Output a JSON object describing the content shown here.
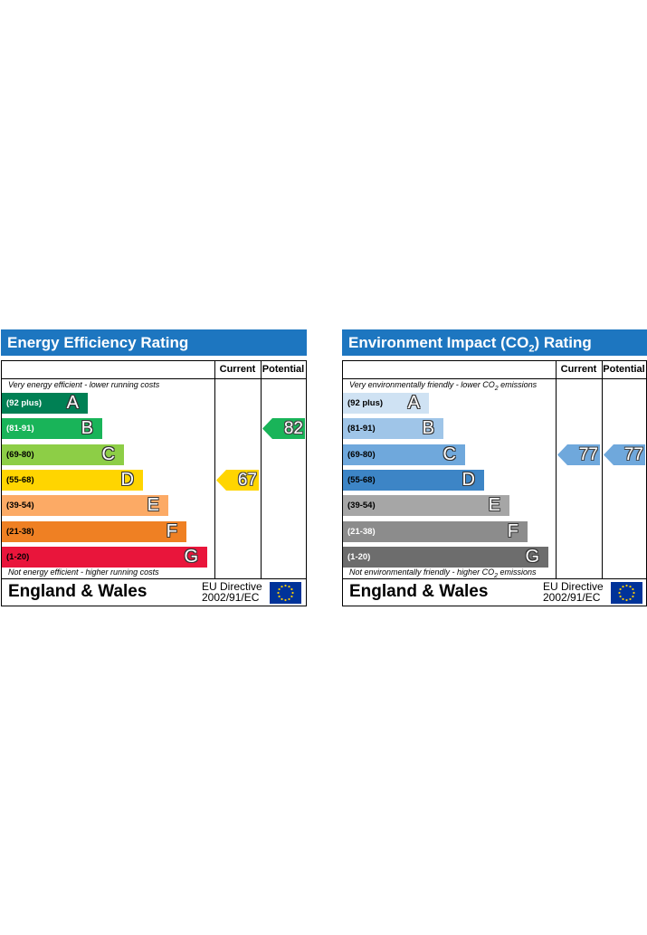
{
  "chart_data": [
    {
      "type": "bar",
      "title": "Energy Efficiency Rating",
      "columns": [
        "Current",
        "Potential"
      ],
      "top_note": "Very energy efficient - lower running costs",
      "bottom_note": "Not energy efficient - higher running costs",
      "bands": [
        {
          "range": "(92 plus)",
          "letter": "A",
          "color": "#008054",
          "text_color": "#ffffff"
        },
        {
          "range": "(81-91)",
          "letter": "B",
          "color": "#19b459",
          "text_color": "#ffffff"
        },
        {
          "range": "(69-80)",
          "letter": "C",
          "color": "#8dce46",
          "text_color": "#000000"
        },
        {
          "range": "(55-68)",
          "letter": "D",
          "color": "#ffd500",
          "text_color": "#000000"
        },
        {
          "range": "(39-54)",
          "letter": "E",
          "color": "#fcaa65",
          "text_color": "#000000"
        },
        {
          "range": "(21-38)",
          "letter": "F",
          "color": "#ef8023",
          "text_color": "#000000"
        },
        {
          "range": "(1-20)",
          "letter": "G",
          "color": "#e9153b",
          "text_color": "#000000"
        }
      ],
      "current": {
        "value": 67,
        "band": "D",
        "color": "#ffd500"
      },
      "potential": {
        "value": 82,
        "band": "B",
        "color": "#19b459"
      },
      "footer_region": "England & Wales",
      "footer_directive_line1": "EU Directive",
      "footer_directive_line2": "2002/91/EC"
    },
    {
      "type": "bar",
      "title_prefix": "Environment Impact (CO",
      "title_sub": "2",
      "title_suffix": ") Rating",
      "columns": [
        "Current",
        "Potential"
      ],
      "top_note_prefix": "Very environmentally friendly - lower CO",
      "top_note_sub": "2",
      "top_note_suffix": " emissions",
      "bottom_note_prefix": "Not environmentally friendly - higher CO",
      "bottom_note_sub": "2",
      "bottom_note_suffix": " emissions",
      "bands": [
        {
          "range": "(92 plus)",
          "letter": "A",
          "color": "#cfe2f3",
          "text_color": "#000000"
        },
        {
          "range": "(81-91)",
          "letter": "B",
          "color": "#9fc5e8",
          "text_color": "#000000"
        },
        {
          "range": "(69-80)",
          "letter": "C",
          "color": "#6fa8dc",
          "text_color": "#000000"
        },
        {
          "range": "(55-68)",
          "letter": "D",
          "color": "#3d85c6",
          "text_color": "#000000"
        },
        {
          "range": "(39-54)",
          "letter": "E",
          "color": "#a6a6a6",
          "text_color": "#000000"
        },
        {
          "range": "(21-38)",
          "letter": "F",
          "color": "#8c8c8c",
          "text_color": "#ffffff"
        },
        {
          "range": "(1-20)",
          "letter": "G",
          "color": "#6d6d6d",
          "text_color": "#ffffff"
        }
      ],
      "current": {
        "value": 77,
        "band": "C",
        "color": "#6fa8dc"
      },
      "potential": {
        "value": 77,
        "band": "C",
        "color": "#6fa8dc"
      },
      "footer_region": "England & Wales",
      "footer_directive_line1": "EU Directive",
      "footer_directive_line2": "2002/91/EC"
    }
  ]
}
